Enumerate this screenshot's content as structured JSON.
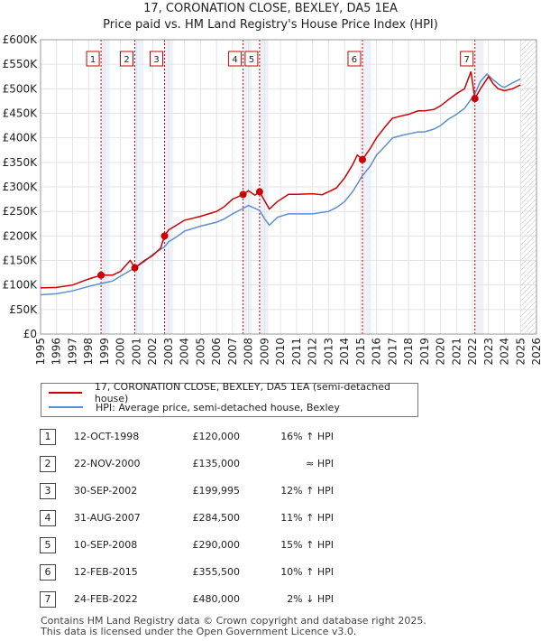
{
  "chart_data": {
    "type": "line",
    "title": "17, CORONATION CLOSE, BEXLEY, DA5 1EA",
    "subtitle": "Price paid vs. HM Land Registry's House Price Index (HPI)",
    "xlim": [
      1995,
      2026
    ],
    "ylim": [
      0,
      600000
    ],
    "x_ticks": [
      "1995",
      "1996",
      "1997",
      "1998",
      "1999",
      "2000",
      "2001",
      "2002",
      "2003",
      "2004",
      "2005",
      "2006",
      "2007",
      "2008",
      "2009",
      "2010",
      "2011",
      "2012",
      "2013",
      "2014",
      "2015",
      "2016",
      "2017",
      "2018",
      "2019",
      "2020",
      "2021",
      "2022",
      "2023",
      "2024",
      "2025",
      "2026"
    ],
    "y_ticks": [
      {
        "v": 0,
        "label": "£0"
      },
      {
        "v": 50000,
        "label": "£50K"
      },
      {
        "v": 100000,
        "label": "£100K"
      },
      {
        "v": 150000,
        "label": "£150K"
      },
      {
        "v": 200000,
        "label": "£200K"
      },
      {
        "v": 250000,
        "label": "£250K"
      },
      {
        "v": 300000,
        "label": "£300K"
      },
      {
        "v": 350000,
        "label": "£350K"
      },
      {
        "v": 400000,
        "label": "£400K"
      },
      {
        "v": 450000,
        "label": "£450K"
      },
      {
        "v": 500000,
        "label": "£500K"
      },
      {
        "v": 550000,
        "label": "£550K"
      },
      {
        "v": 600000,
        "label": "£600K"
      }
    ],
    "forecast_from": 2025.0,
    "series": [
      {
        "name": "17, CORONATION CLOSE, BEXLEY, DA5 1EA (semi-detached house)",
        "color": "#cc0000",
        "points": [
          [
            1995.0,
            94000
          ],
          [
            1996.0,
            95000
          ],
          [
            1997.0,
            100000
          ],
          [
            1998.0,
            112000
          ],
          [
            1998.78,
            120000
          ],
          [
            1999.5,
            120000
          ],
          [
            2000.0,
            128000
          ],
          [
            2000.6,
            150000
          ],
          [
            2000.9,
            135000
          ],
          [
            2001.5,
            150000
          ],
          [
            2002.0,
            160000
          ],
          [
            2002.5,
            175000
          ],
          [
            2002.75,
            199995
          ],
          [
            2003.0,
            212000
          ],
          [
            2003.5,
            222000
          ],
          [
            2004.0,
            232000
          ],
          [
            2004.5,
            236000
          ],
          [
            2005.0,
            240000
          ],
          [
            2005.5,
            245000
          ],
          [
            2006.0,
            250000
          ],
          [
            2006.5,
            260000
          ],
          [
            2007.0,
            275000
          ],
          [
            2007.66,
            284500
          ],
          [
            2008.0,
            292000
          ],
          [
            2008.4,
            283000
          ],
          [
            2008.69,
            290000
          ],
          [
            2009.0,
            272000
          ],
          [
            2009.3,
            255000
          ],
          [
            2009.8,
            270000
          ],
          [
            2010.5,
            285000
          ],
          [
            2011.0,
            285000
          ],
          [
            2012.0,
            286000
          ],
          [
            2012.6,
            284000
          ],
          [
            2013.0,
            290000
          ],
          [
            2013.5,
            298000
          ],
          [
            2014.0,
            318000
          ],
          [
            2014.5,
            345000
          ],
          [
            2014.8,
            365000
          ],
          [
            2015.12,
            355500
          ],
          [
            2015.6,
            378000
          ],
          [
            2016.0,
            400000
          ],
          [
            2016.6,
            425000
          ],
          [
            2017.0,
            440000
          ],
          [
            2017.6,
            445000
          ],
          [
            2018.0,
            448000
          ],
          [
            2018.6,
            455000
          ],
          [
            2019.0,
            455000
          ],
          [
            2019.6,
            458000
          ],
          [
            2020.0,
            465000
          ],
          [
            2020.5,
            478000
          ],
          [
            2021.0,
            490000
          ],
          [
            2021.5,
            500000
          ],
          [
            2021.9,
            535000
          ],
          [
            2022.15,
            480000
          ],
          [
            2022.5,
            500000
          ],
          [
            2023.0,
            525000
          ],
          [
            2023.3,
            510000
          ],
          [
            2023.6,
            500000
          ],
          [
            2024.0,
            496000
          ],
          [
            2024.5,
            500000
          ],
          [
            2025.0,
            508000
          ]
        ]
      },
      {
        "name": "HPI: Average price, semi-detached house, Bexley",
        "color": "#5b8fd0",
        "points": [
          [
            1995.0,
            80000
          ],
          [
            1996.0,
            82000
          ],
          [
            1997.0,
            88000
          ],
          [
            1998.0,
            97000
          ],
          [
            1998.78,
            103000
          ],
          [
            1999.5,
            108000
          ],
          [
            2000.0,
            118000
          ],
          [
            2000.9,
            135000
          ],
          [
            2001.5,
            148000
          ],
          [
            2002.0,
            162000
          ],
          [
            2002.75,
            178000
          ],
          [
            2003.0,
            188000
          ],
          [
            2003.5,
            198000
          ],
          [
            2004.0,
            210000
          ],
          [
            2005.0,
            220000
          ],
          [
            2006.0,
            228000
          ],
          [
            2006.5,
            235000
          ],
          [
            2007.0,
            245000
          ],
          [
            2007.66,
            256000
          ],
          [
            2008.0,
            262000
          ],
          [
            2008.69,
            252000
          ],
          [
            2009.0,
            235000
          ],
          [
            2009.3,
            222000
          ],
          [
            2009.8,
            238000
          ],
          [
            2010.5,
            245000
          ],
          [
            2011.0,
            245000
          ],
          [
            2012.0,
            245000
          ],
          [
            2013.0,
            250000
          ],
          [
            2013.5,
            258000
          ],
          [
            2014.0,
            270000
          ],
          [
            2014.5,
            290000
          ],
          [
            2015.12,
            323000
          ],
          [
            2015.6,
            342000
          ],
          [
            2016.0,
            365000
          ],
          [
            2016.6,
            385000
          ],
          [
            2017.0,
            400000
          ],
          [
            2017.6,
            405000
          ],
          [
            2018.0,
            408000
          ],
          [
            2018.6,
            412000
          ],
          [
            2019.0,
            412000
          ],
          [
            2019.6,
            418000
          ],
          [
            2020.0,
            425000
          ],
          [
            2020.5,
            438000
          ],
          [
            2021.0,
            448000
          ],
          [
            2021.5,
            460000
          ],
          [
            2022.15,
            490000
          ],
          [
            2022.5,
            515000
          ],
          [
            2022.9,
            530000
          ],
          [
            2023.3,
            518000
          ],
          [
            2023.8,
            505000
          ],
          [
            2024.0,
            503000
          ],
          [
            2024.5,
            512000
          ],
          [
            2025.0,
            520000
          ]
        ]
      }
    ],
    "sales": [
      {
        "label": "1",
        "date": "12-OCT-1998",
        "x": 1998.78,
        "price": "£120,000",
        "y": 120000,
        "hpi": "16% ↑ HPI"
      },
      {
        "label": "2",
        "date": "22-NOV-2000",
        "x": 2000.89,
        "price": "£135,000",
        "y": 135000,
        "hpi": "≈ HPI"
      },
      {
        "label": "3",
        "date": "30-SEP-2002",
        "x": 2002.75,
        "price": "£199,995",
        "y": 199995,
        "hpi": "12% ↑ HPI"
      },
      {
        "label": "4",
        "date": "31-AUG-2007",
        "x": 2007.66,
        "price": "£284,500",
        "y": 284500,
        "hpi": "11% ↑ HPI"
      },
      {
        "label": "5",
        "date": "10-SEP-2008",
        "x": 2008.69,
        "price": "£290,000",
        "y": 290000,
        "hpi": "15% ↑ HPI"
      },
      {
        "label": "6",
        "date": "12-FEB-2015",
        "x": 2015.12,
        "price": "£355,500",
        "y": 355500,
        "hpi": "10% ↑ HPI"
      },
      {
        "label": "7",
        "date": "24-FEB-2022",
        "x": 2022.15,
        "price": "£480,000",
        "y": 480000,
        "hpi": "2% ↓ HPI"
      }
    ]
  },
  "legend": {
    "property": "17, CORONATION CLOSE, BEXLEY, DA5 1EA (semi-detached house)",
    "hpi": "HPI: Average price, semi-detached house, Bexley"
  },
  "footer": {
    "line1": "Contains HM Land Registry data © Crown copyright and database right 2025.",
    "line2": "This data is licensed under the Open Government Licence v3.0."
  },
  "colors": {
    "property": "#cc0000",
    "hpi": "#5b8fd0",
    "band": "#dde6f5"
  }
}
